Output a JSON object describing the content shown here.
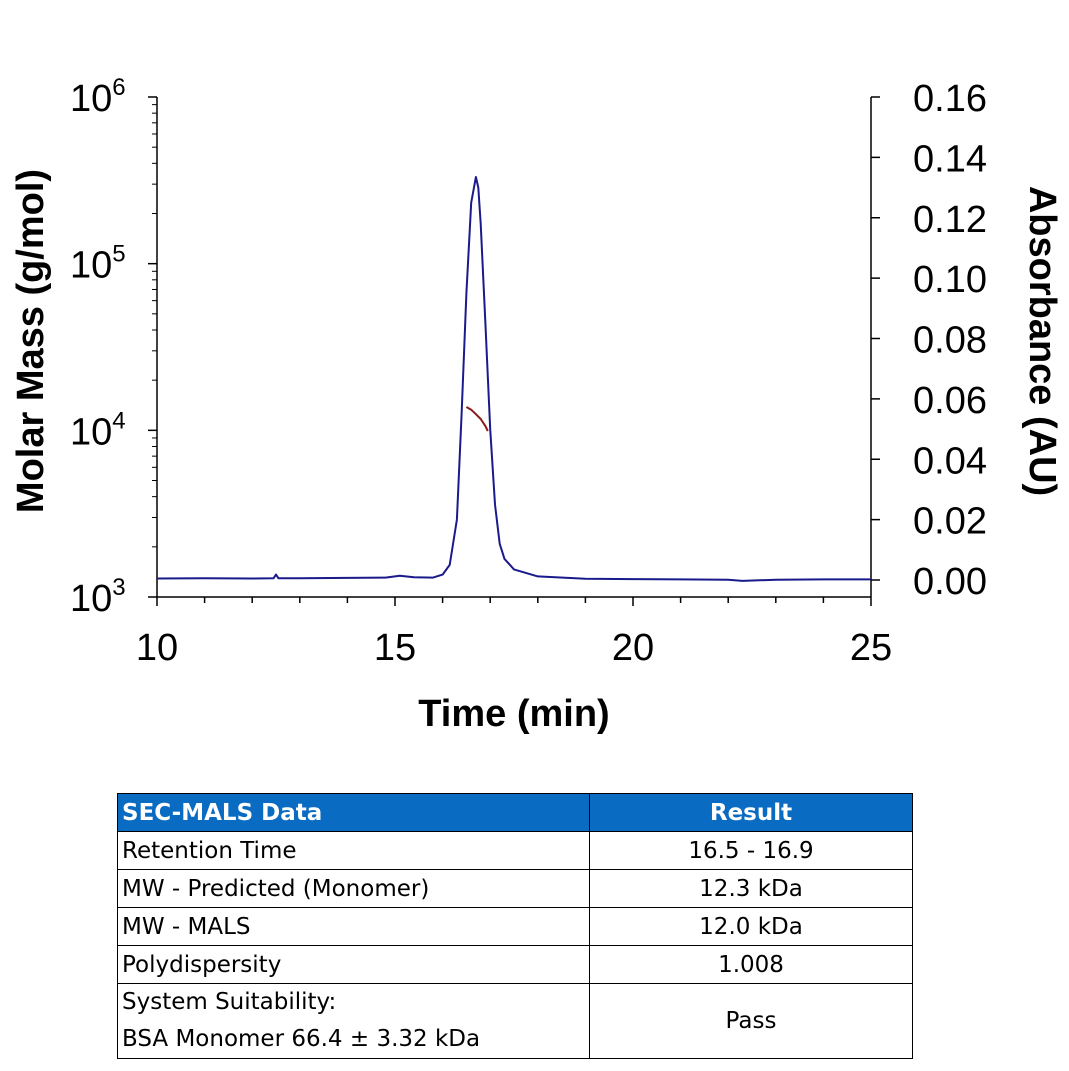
{
  "chart_data": {
    "type": "line",
    "xlabel": "Time (min)",
    "ylabel_left": "Molar Mass (g/mol)",
    "ylabel_right": "Absorbance (AU)",
    "xlim": [
      10,
      25
    ],
    "x_ticks": [
      "10",
      "15",
      "20",
      "25"
    ],
    "y_left_scale": "log",
    "y_left_lim": [
      1000,
      1000000
    ],
    "y_left_ticks": [
      {
        "base": "10",
        "exp": "3",
        "value": 1000
      },
      {
        "base": "10",
        "exp": "4",
        "value": 10000
      },
      {
        "base": "10",
        "exp": "5",
        "value": 100000
      },
      {
        "base": "10",
        "exp": "6",
        "value": 1000000
      }
    ],
    "y_right_lim": [
      0,
      0.16
    ],
    "y_right_ticks": [
      "0.00",
      "0.02",
      "0.04",
      "0.06",
      "0.08",
      "0.10",
      "0.12",
      "0.14",
      "0.16"
    ],
    "series": [
      {
        "name": "Absorbance",
        "axis": "right",
        "color": "#1a1a8c",
        "x": [
          10.0,
          11.0,
          12.0,
          12.45,
          12.5,
          12.55,
          13.0,
          14.0,
          14.8,
          15.1,
          15.4,
          15.8,
          16.0,
          16.15,
          16.3,
          16.4,
          16.5,
          16.6,
          16.7,
          16.75,
          16.8,
          16.9,
          17.0,
          17.1,
          17.2,
          17.3,
          17.5,
          18.0,
          19.0,
          20.0,
          21.0,
          22.0,
          22.3,
          23.0,
          24.0,
          25.0
        ],
        "values": [
          0.0005,
          0.0006,
          0.0005,
          0.0006,
          0.0018,
          0.0006,
          0.0006,
          0.0007,
          0.0008,
          0.0014,
          0.0009,
          0.0008,
          0.0018,
          0.005,
          0.02,
          0.055,
          0.095,
          0.125,
          0.1335,
          0.13,
          0.118,
          0.085,
          0.05,
          0.025,
          0.012,
          0.007,
          0.0035,
          0.0012,
          0.0004,
          0.0003,
          0.0002,
          0.0001,
          -0.0003,
          0.0001,
          0.0002,
          0.0002
        ]
      },
      {
        "name": "Molar Mass",
        "axis": "left",
        "color": "#8b1a1a",
        "x": [
          16.5,
          16.6,
          16.7,
          16.8,
          16.9,
          16.95
        ],
        "values": [
          13800,
          13300,
          12500,
          11700,
          10600,
          9900
        ]
      }
    ]
  },
  "table": {
    "headers": [
      "SEC-MALS Data",
      "Result"
    ],
    "rows": [
      {
        "label": "Retention Time",
        "result": "16.5 - 16.9"
      },
      {
        "label": "MW - Predicted (Monomer)",
        "result": "12.3 kDa"
      },
      {
        "label": "MW - MALS",
        "result": "12.0 kDa"
      },
      {
        "label": "Polydispersity",
        "result": "1.008"
      }
    ],
    "suitability": {
      "line1": "System Suitability:",
      "line2": "BSA Monomer 66.4 ± 3.32 kDa",
      "result": "Pass"
    },
    "header_color": "#0a6bc2"
  }
}
